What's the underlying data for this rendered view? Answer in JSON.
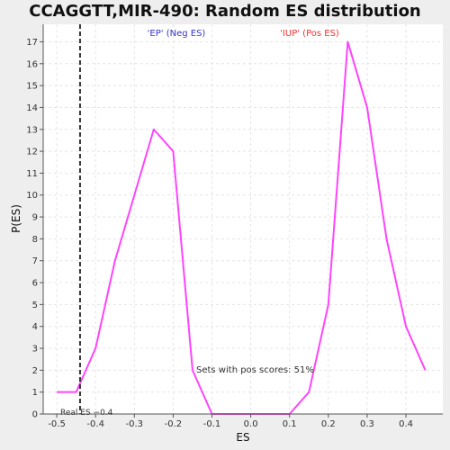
{
  "chart_data": {
    "type": "line",
    "title": "CCAGGTT,MIR-490: Random ES distribution",
    "xlabel": "ES",
    "ylabel": "P(ES)",
    "xlim": [
      -0.535,
      0.495
    ],
    "ylim": [
      0,
      17.8
    ],
    "x_ticks": [
      -0.5,
      -0.4,
      -0.3,
      -0.2,
      -0.1,
      0.0,
      0.1,
      0.2,
      0.3,
      0.4
    ],
    "x_tick_labels": [
      "-0.5",
      "-0.4",
      "-0.3",
      "-0.2",
      "-0.1",
      "0.0",
      "0.1",
      "0.2",
      "0.3",
      "0.4"
    ],
    "y_ticks": [
      0,
      1,
      2,
      3,
      4,
      5,
      6,
      7,
      8,
      9,
      10,
      11,
      12,
      13,
      14,
      15,
      16,
      17
    ],
    "y_tick_labels": [
      "0",
      "1",
      "2",
      "3",
      "4",
      "5",
      "6",
      "7",
      "8",
      "9",
      "10",
      "11",
      "12",
      "13",
      "14",
      "15",
      "16",
      "17"
    ],
    "grid": true,
    "series": [
      {
        "color": "#ff44ff",
        "x": [
          -0.5,
          -0.45,
          -0.4,
          -0.35,
          -0.3,
          -0.25,
          -0.2,
          -0.15,
          -0.1,
          -0.05,
          0.0,
          0.05,
          0.1,
          0.15,
          0.2,
          0.25,
          0.3,
          0.35,
          0.4,
          0.45
        ],
        "y": [
          1,
          1,
          3,
          7,
          10,
          13,
          12,
          2,
          0,
          0,
          0,
          0,
          0,
          1,
          5,
          17,
          14,
          8,
          4,
          2
        ]
      }
    ],
    "annotations": {
      "neg_label": "'EP' (Neg ES)",
      "neg_color": "#3333cc",
      "pos_label": "'IUP' (Pos ES)",
      "pos_color": "#ee3333",
      "real_es_label": "Real ES −0.4",
      "real_es_value": -0.44,
      "pos_scores_label": "Sets with pos scores: 51%"
    }
  }
}
